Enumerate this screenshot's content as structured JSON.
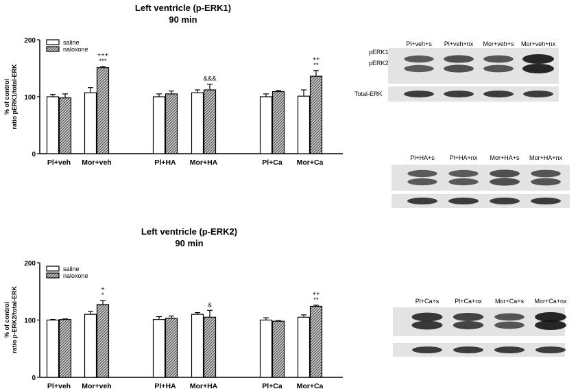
{
  "chart_data": [
    {
      "type": "bar",
      "title": "Left ventricle (p-ERK1)",
      "subtitle": "90 min",
      "ylabel": [
        "% of control",
        "ratio pERK1/total-ERK"
      ],
      "ylim": [
        0,
        200
      ],
      "yticks": [
        0,
        100,
        200
      ],
      "categories": [
        "Pl+veh",
        "Mor+veh",
        "Pl+HA",
        "Mor+HA",
        "Pl+Ca",
        "Mor+Ca"
      ],
      "legend_position": "top-left",
      "series": [
        {
          "name": "saline",
          "values": [
            100,
            107,
            100,
            107,
            100,
            101
          ],
          "errors": [
            4,
            9,
            5,
            5,
            5,
            11
          ]
        },
        {
          "name": "naloxone",
          "values": [
            98,
            151,
            105,
            112,
            109,
            136
          ],
          "errors": [
            7,
            2,
            5,
            10,
            2,
            10
          ]
        }
      ],
      "annotations": [
        {
          "category": "Mor+veh",
          "series": "naloxone",
          "lines": [
            "+++",
            "***"
          ]
        },
        {
          "category": "Mor+HA",
          "series": "naloxone",
          "lines": [
            "&&&"
          ]
        },
        {
          "category": "Mor+Ca",
          "series": "naloxone",
          "lines": [
            "++",
            "**"
          ]
        }
      ]
    },
    {
      "type": "bar",
      "title": "Left ventricle (p-ERK2)",
      "subtitle": "90 min",
      "ylabel": [
        "% of control",
        "ratio p-ERK2/total-ERK"
      ],
      "ylim": [
        0,
        200
      ],
      "yticks": [
        0,
        100,
        200
      ],
      "categories": [
        "Pl+veh",
        "Mor+veh",
        "Pl+HA",
        "Mor+HA",
        "Pl+Ca",
        "Mor+Ca"
      ],
      "legend_position": "top-left",
      "series": [
        {
          "name": "saline",
          "values": [
            100,
            110,
            101,
            110,
            100,
            105
          ],
          "errors": [
            1,
            5,
            5,
            3,
            4,
            4
          ]
        },
        {
          "name": "naloxone",
          "values": [
            101,
            127,
            103,
            105,
            98,
            124
          ],
          "errors": [
            1,
            7,
            4,
            12,
            1,
            2
          ]
        }
      ],
      "annotations": [
        {
          "category": "Mor+veh",
          "series": "naloxone",
          "lines": [
            "+",
            "*"
          ]
        },
        {
          "category": "Mor+HA",
          "series": "naloxone",
          "lines": [
            "&"
          ]
        },
        {
          "category": "Mor+Ca",
          "series": "naloxone",
          "lines": [
            "++",
            "**"
          ]
        }
      ]
    }
  ],
  "blots": [
    {
      "lanes": [
        "Pl+veh+s",
        "Pl+veh+nx",
        "Mor+veh+s",
        "Mor+veh+nx"
      ],
      "row_labels": [
        "pERK1",
        "pERK2",
        "Total-ERK"
      ],
      "intensity": [
        0.55,
        0.65,
        0.6,
        1.0
      ]
    },
    {
      "lanes": [
        "Pl+HA+s",
        "Pl+HA+nx",
        "Mor+HA+s",
        "Mor+HA+nx"
      ],
      "row_labels": [],
      "intensity": [
        0.55,
        0.55,
        0.65,
        0.6
      ]
    },
    {
      "lanes": [
        "Pl+Ca+s",
        "Pl+Ca+nx",
        "Mor+Ca+s",
        "Mor+Ca+nx"
      ],
      "row_labels": [],
      "intensity": [
        0.85,
        0.75,
        0.6,
        1.0
      ]
    }
  ]
}
